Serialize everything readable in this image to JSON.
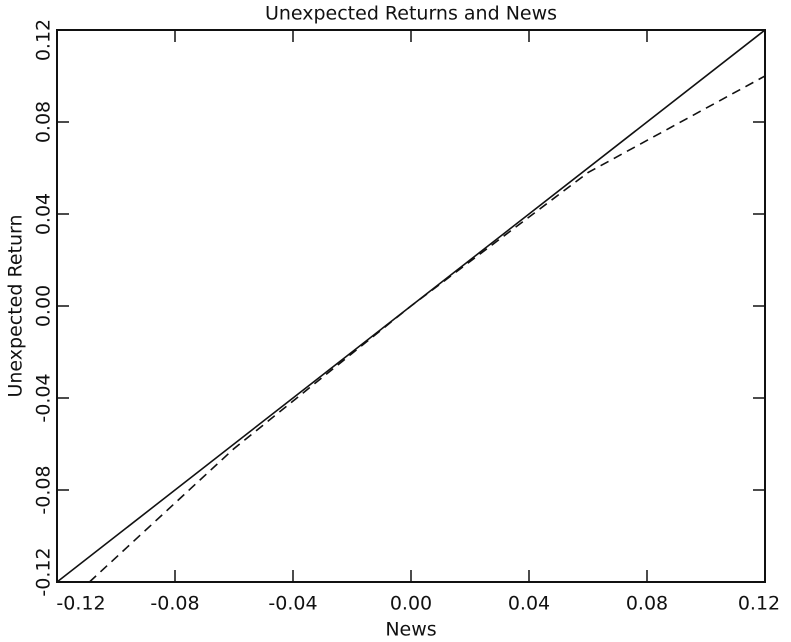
{
  "chart_data": {
    "type": "line",
    "title": "Unexpected Returns and News",
    "xlabel": "News",
    "ylabel": "Unexpected Return",
    "xlim": [
      -0.12,
      0.12
    ],
    "ylim": [
      -0.12,
      0.12
    ],
    "xticks": [
      {
        "value": -0.12,
        "label": "-0.12"
      },
      {
        "value": -0.08,
        "label": "-0.08"
      },
      {
        "value": -0.04,
        "label": "-0.04"
      },
      {
        "value": 0,
        "label": "0.00"
      },
      {
        "value": 0.04,
        "label": "0.04"
      },
      {
        "value": 0.08,
        "label": "0.08"
      },
      {
        "value": 0.12,
        "label": "0.12"
      }
    ],
    "yticks": [
      {
        "value": -0.12,
        "label": "-0.12"
      },
      {
        "value": -0.08,
        "label": "-0.08"
      },
      {
        "value": -0.04,
        "label": "-0.04"
      },
      {
        "value": 0,
        "label": "0.00"
      },
      {
        "value": 0.04,
        "label": "0.04"
      },
      {
        "value": 0.08,
        "label": "0.08"
      },
      {
        "value": 0.12,
        "label": "0.12"
      }
    ],
    "series": [
      {
        "color": "#111111",
        "dashed": false,
        "x": [
          -0.12,
          0.12
        ],
        "values": [
          -0.12,
          0.12
        ]
      },
      {
        "color": "#111111",
        "dashed": true,
        "x": [
          -0.109,
          -0.06,
          0,
          0.06,
          0.12
        ],
        "values": [
          -0.12,
          -0.062,
          0,
          0.058,
          0.1
        ]
      }
    ]
  }
}
